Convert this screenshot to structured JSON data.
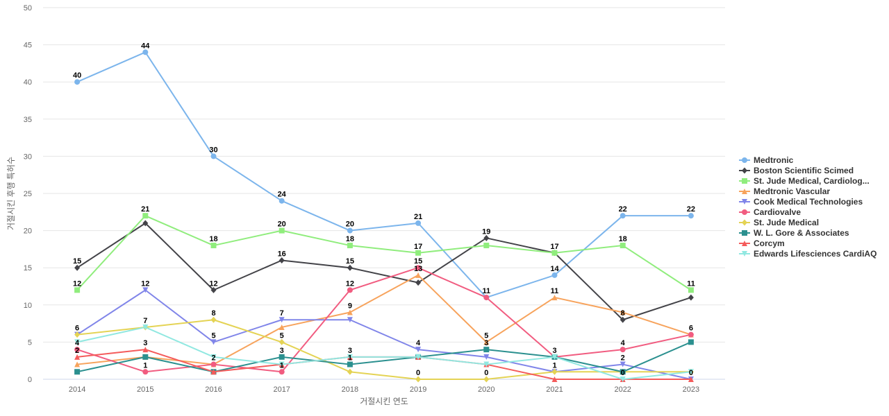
{
  "chart_data": {
    "type": "line",
    "xlabel": "거절시킨 연도",
    "ylabel": "거절시킨 후행 특허수",
    "ylim": [
      0,
      50
    ],
    "y_ticks": [
      "0",
      "5",
      "10",
      "15",
      "20",
      "25",
      "30",
      "35",
      "40",
      "45",
      "50"
    ],
    "categories": [
      "2014",
      "2015",
      "2016",
      "2017",
      "2018",
      "2019",
      "2020",
      "2021",
      "2022",
      "2023"
    ],
    "grid": "horizontal",
    "legend_position": "right",
    "series": [
      {
        "name": "Medtronic",
        "color": "#7cb5ec",
        "marker": "circle",
        "values": [
          40,
          44,
          30,
          24,
          20,
          21,
          11,
          14,
          22,
          22
        ]
      },
      {
        "name": "Boston Scientific Scimed",
        "color": "#434348",
        "marker": "diamond",
        "values": [
          15,
          21,
          12,
          16,
          15,
          13,
          19,
          17,
          8,
          11
        ]
      },
      {
        "name": "St. Jude Medical, Cardiolog...",
        "color": "#90ed7d",
        "marker": "square",
        "values": [
          12,
          22,
          18,
          20,
          18,
          17,
          18,
          17,
          18,
          12
        ]
      },
      {
        "name": "Medtronic Vascular",
        "color": "#f7a35c",
        "marker": "triangle",
        "values": [
          2,
          3,
          2,
          7,
          9,
          14,
          5,
          11,
          9,
          6
        ]
      },
      {
        "name": "Cook Medical Technologies",
        "color": "#8085e9",
        "marker": "triangle-down",
        "values": [
          6,
          12,
          5,
          8,
          8,
          4,
          3,
          1,
          2,
          0
        ]
      },
      {
        "name": "Cardiovalve",
        "color": "#f15c80",
        "marker": "circle",
        "values": [
          4,
          1,
          2,
          1,
          12,
          15,
          11,
          3,
          4,
          6
        ]
      },
      {
        "name": "St. Jude Medical",
        "color": "#e4d354",
        "marker": "diamond",
        "values": [
          6,
          7,
          8,
          5,
          1,
          0,
          0,
          1,
          1,
          1
        ]
      },
      {
        "name": "W. L. Gore & Associates",
        "color": "#2b908f",
        "marker": "square",
        "values": [
          1,
          3,
          1,
          3,
          2,
          3,
          4,
          3,
          1,
          5
        ]
      },
      {
        "name": "Corcym",
        "color": "#f45b5b",
        "marker": "triangle",
        "values": [
          3,
          4,
          1,
          2,
          3,
          3,
          2,
          0,
          0,
          0
        ]
      },
      {
        "name": "Edwards Lifesciences CardiAQ",
        "color": "#91e8e1",
        "marker": "triangle-down",
        "values": [
          5,
          7,
          3,
          2,
          3,
          3,
          2,
          3,
          0,
          1
        ]
      }
    ],
    "data_labels": [
      {
        "x": "2014",
        "y": 40,
        "text": "40"
      },
      {
        "x": "2014",
        "y": 15,
        "text": "15"
      },
      {
        "x": "2014",
        "y": 12,
        "text": "12"
      },
      {
        "x": "2014",
        "y": 6,
        "text": "6"
      },
      {
        "x": "2014",
        "y": 4,
        "text": "4"
      },
      {
        "x": "2014",
        "y": 3,
        "text": "2"
      },
      {
        "x": "2015",
        "y": 44,
        "text": "44"
      },
      {
        "x": "2015",
        "y": 22,
        "text": "21"
      },
      {
        "x": "2015",
        "y": 12,
        "text": "12"
      },
      {
        "x": "2015",
        "y": 7,
        "text": "7"
      },
      {
        "x": "2015",
        "y": 4,
        "text": "3"
      },
      {
        "x": "2015",
        "y": 1,
        "text": "1"
      },
      {
        "x": "2016",
        "y": 30,
        "text": "30"
      },
      {
        "x": "2016",
        "y": 18,
        "text": "18"
      },
      {
        "x": "2016",
        "y": 12,
        "text": "12"
      },
      {
        "x": "2016",
        "y": 8,
        "text": "8"
      },
      {
        "x": "2016",
        "y": 5,
        "text": "5"
      },
      {
        "x": "2016",
        "y": 2,
        "text": "2"
      },
      {
        "x": "2017",
        "y": 24,
        "text": "24"
      },
      {
        "x": "2017",
        "y": 20,
        "text": "20"
      },
      {
        "x": "2017",
        "y": 16,
        "text": "16"
      },
      {
        "x": "2017",
        "y": 8,
        "text": "7"
      },
      {
        "x": "2017",
        "y": 5,
        "text": "5"
      },
      {
        "x": "2017",
        "y": 3,
        "text": "3"
      },
      {
        "x": "2017",
        "y": 1,
        "text": "1"
      },
      {
        "x": "2018",
        "y": 20,
        "text": "20"
      },
      {
        "x": "2018",
        "y": 18,
        "text": "18"
      },
      {
        "x": "2018",
        "y": 15,
        "text": "15"
      },
      {
        "x": "2018",
        "y": 12,
        "text": "12"
      },
      {
        "x": "2018",
        "y": 9,
        "text": "9"
      },
      {
        "x": "2018",
        "y": 3,
        "text": "3"
      },
      {
        "x": "2018",
        "y": 2,
        "text": "1"
      },
      {
        "x": "2019",
        "y": 21,
        "text": "21"
      },
      {
        "x": "2019",
        "y": 17,
        "text": "17"
      },
      {
        "x": "2019",
        "y": 15,
        "text": "15"
      },
      {
        "x": "2019",
        "y": 14,
        "text": "13"
      },
      {
        "x": "2019",
        "y": 4,
        "text": "4"
      },
      {
        "x": "2019",
        "y": 0,
        "text": "0"
      },
      {
        "x": "2020",
        "y": 19,
        "text": "19"
      },
      {
        "x": "2020",
        "y": 11,
        "text": "11"
      },
      {
        "x": "2020",
        "y": 5,
        "text": "5"
      },
      {
        "x": "2020",
        "y": 4,
        "text": "3"
      },
      {
        "x": "2020",
        "y": 0,
        "text": "0"
      },
      {
        "x": "2021",
        "y": 17,
        "text": "17"
      },
      {
        "x": "2021",
        "y": 14,
        "text": "14"
      },
      {
        "x": "2021",
        "y": 11,
        "text": "11"
      },
      {
        "x": "2021",
        "y": 3,
        "text": "3"
      },
      {
        "x": "2021",
        "y": 1,
        "text": "1"
      },
      {
        "x": "2022",
        "y": 22,
        "text": "22"
      },
      {
        "x": "2022",
        "y": 18,
        "text": "18"
      },
      {
        "x": "2022",
        "y": 8,
        "text": "8"
      },
      {
        "x": "2022",
        "y": 4,
        "text": "4"
      },
      {
        "x": "2022",
        "y": 2,
        "text": "2"
      },
      {
        "x": "2022",
        "y": 0,
        "text": "0"
      },
      {
        "x": "2023",
        "y": 22,
        "text": "22"
      },
      {
        "x": "2023",
        "y": 12,
        "text": "11"
      },
      {
        "x": "2023",
        "y": 6,
        "text": "6"
      },
      {
        "x": "2023",
        "y": 0,
        "text": "0"
      }
    ]
  }
}
